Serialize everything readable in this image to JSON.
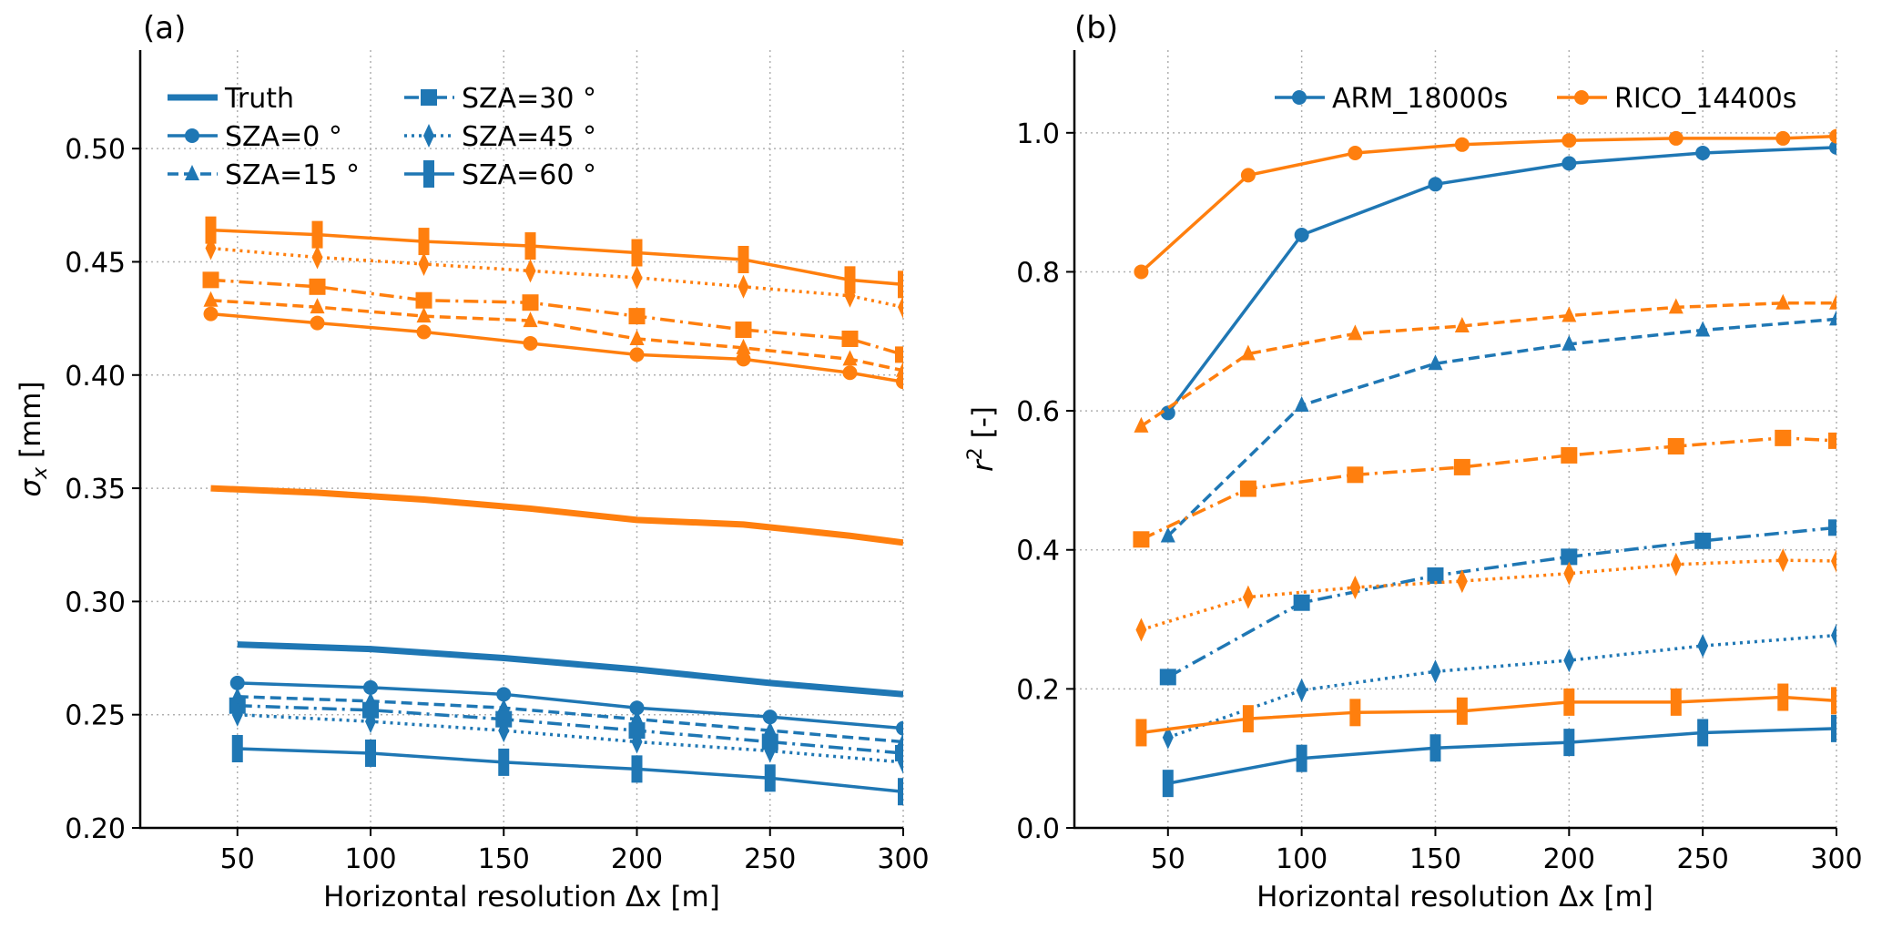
{
  "chart_data": [
    {
      "panel_label": "(a)",
      "type": "line",
      "xlabel": "Horizontal resolution Δx [m]",
      "ylabel": "σx [mm]",
      "ylabel_symbol": "σ",
      "ylabel_subscript": "x",
      "ylabel_unit": " [mm]",
      "xlim": [
        13.5,
        300
      ],
      "ylim": [
        0.2,
        0.5435
      ],
      "xticks": [
        50,
        100,
        150,
        200,
        250,
        300
      ],
      "xtick_labels": [
        "50",
        "100",
        "150",
        "200",
        "250",
        "300"
      ],
      "yticks": [
        0.2,
        0.25,
        0.3,
        0.35,
        0.4,
        0.45,
        0.5
      ],
      "ytick_labels": [
        "0.20",
        "0.25",
        "0.30",
        "0.35",
        "0.40",
        "0.45",
        "0.50"
      ],
      "grid": true,
      "legend_position": "top-left",
      "legend": [
        {
          "label": "Truth",
          "style": "truth",
          "marker": "none"
        },
        {
          "label": "SZA=0 °",
          "style": "solid",
          "marker": "circle"
        },
        {
          "label": "SZA=15 °",
          "style": "dashed",
          "marker": "triangle"
        },
        {
          "label": "SZA=30 °",
          "style": "dashdot",
          "marker": "square"
        },
        {
          "label": "SZA=45 °",
          "style": "dotted",
          "marker": "diamond"
        },
        {
          "label": "SZA=60 °",
          "style": "solid",
          "marker": "bar"
        }
      ],
      "legend_color": "#1f77b4",
      "series": [
        {
          "name": "ARM Truth",
          "color": "#1f77b4",
          "style": "truth",
          "marker": "none",
          "x": [
            50,
            100,
            150,
            200,
            250,
            300
          ],
          "y": [
            0.281,
            0.279,
            0.275,
            0.27,
            0.264,
            0.259
          ]
        },
        {
          "name": "ARM SZA=0",
          "color": "#1f77b4",
          "style": "solid",
          "marker": "circle",
          "x": [
            50,
            100,
            150,
            200,
            250,
            300
          ],
          "y": [
            0.264,
            0.262,
            0.259,
            0.253,
            0.249,
            0.244
          ]
        },
        {
          "name": "ARM SZA=15",
          "color": "#1f77b4",
          "style": "dashed",
          "marker": "triangle",
          "x": [
            50,
            100,
            150,
            200,
            250,
            300
          ],
          "y": [
            0.258,
            0.256,
            0.253,
            0.248,
            0.243,
            0.238
          ]
        },
        {
          "name": "ARM SZA=30",
          "color": "#1f77b4",
          "style": "dashdot",
          "marker": "square",
          "x": [
            50,
            100,
            150,
            200,
            250,
            300
          ],
          "y": [
            0.254,
            0.252,
            0.248,
            0.243,
            0.238,
            0.233
          ]
        },
        {
          "name": "ARM SZA=45",
          "color": "#1f77b4",
          "style": "dotted",
          "marker": "diamond",
          "x": [
            50,
            100,
            150,
            200,
            250,
            300
          ],
          "y": [
            0.25,
            0.247,
            0.243,
            0.238,
            0.234,
            0.229
          ]
        },
        {
          "name": "ARM SZA=60",
          "color": "#1f77b4",
          "style": "solid",
          "marker": "bar",
          "x": [
            50,
            100,
            150,
            200,
            250,
            300
          ],
          "y": [
            0.235,
            0.233,
            0.229,
            0.226,
            0.222,
            0.216
          ]
        },
        {
          "name": "RICO Truth",
          "color": "#ff7f0e",
          "style": "truth",
          "marker": "none",
          "x": [
            40,
            80,
            120,
            160,
            200,
            240,
            280,
            300
          ],
          "y": [
            0.35,
            0.348,
            0.345,
            0.341,
            0.336,
            0.334,
            0.329,
            0.326
          ]
        },
        {
          "name": "RICO SZA=0",
          "color": "#ff7f0e",
          "style": "solid",
          "marker": "circle",
          "x": [
            40,
            80,
            120,
            160,
            200,
            240,
            280,
            300
          ],
          "y": [
            0.427,
            0.423,
            0.419,
            0.414,
            0.409,
            0.407,
            0.401,
            0.397
          ]
        },
        {
          "name": "RICO SZA=15",
          "color": "#ff7f0e",
          "style": "dashed",
          "marker": "triangle",
          "x": [
            40,
            80,
            120,
            160,
            200,
            240,
            280,
            300
          ],
          "y": [
            0.433,
            0.43,
            0.426,
            0.424,
            0.416,
            0.412,
            0.407,
            0.402
          ]
        },
        {
          "name": "RICO SZA=30",
          "color": "#ff7f0e",
          "style": "dashdot",
          "marker": "square",
          "x": [
            40,
            80,
            120,
            160,
            200,
            240,
            280,
            300
          ],
          "y": [
            0.442,
            0.439,
            0.433,
            0.432,
            0.426,
            0.42,
            0.416,
            0.409
          ]
        },
        {
          "name": "RICO SZA=45",
          "color": "#ff7f0e",
          "style": "dotted",
          "marker": "diamond",
          "x": [
            40,
            80,
            120,
            160,
            200,
            240,
            280,
            300
          ],
          "y": [
            0.456,
            0.452,
            0.449,
            0.446,
            0.443,
            0.439,
            0.435,
            0.43
          ]
        },
        {
          "name": "RICO SZA=60",
          "color": "#ff7f0e",
          "style": "solid",
          "marker": "bar",
          "x": [
            40,
            80,
            120,
            160,
            200,
            240,
            280,
            300
          ],
          "y": [
            0.464,
            0.462,
            0.459,
            0.457,
            0.454,
            0.451,
            0.442,
            0.44
          ]
        }
      ]
    },
    {
      "panel_label": "(b)",
      "type": "line",
      "xlabel": "Horizontal resolution Δx [m]",
      "ylabel": "r² [-]",
      "ylabel_symbol": "r",
      "ylabel_superscript": "2",
      "ylabel_unit": " [-]",
      "xlim": [
        15,
        300
      ],
      "ylim": [
        0.0,
        1.119
      ],
      "xticks": [
        50,
        100,
        150,
        200,
        250,
        300
      ],
      "xtick_labels": [
        "50",
        "100",
        "150",
        "200",
        "250",
        "300"
      ],
      "yticks": [
        0.0,
        0.2,
        0.4,
        0.6,
        0.8,
        1.0
      ],
      "ytick_labels": [
        "0.0",
        "0.2",
        "0.4",
        "0.6",
        "0.8",
        "1.0"
      ],
      "grid": true,
      "legend_position": "top-right",
      "legend": [
        {
          "label": "ARM_18000s",
          "color": "#1f77b4",
          "style": "solid",
          "marker": "circle"
        },
        {
          "label": "RICO_14400s",
          "color": "#ff7f0e",
          "style": "solid",
          "marker": "circle"
        }
      ],
      "series": [
        {
          "name": "ARM SZA=0",
          "color": "#1f77b4",
          "style": "solid",
          "marker": "circle",
          "x": [
            50,
            100,
            150,
            200,
            250,
            300
          ],
          "y": [
            0.597,
            0.853,
            0.926,
            0.956,
            0.971,
            0.979
          ]
        },
        {
          "name": "ARM SZA=15",
          "color": "#1f77b4",
          "style": "dashed",
          "marker": "triangle",
          "x": [
            50,
            100,
            150,
            200,
            250,
            300
          ],
          "y": [
            0.42,
            0.608,
            0.668,
            0.696,
            0.716,
            0.732
          ]
        },
        {
          "name": "ARM SZA=30",
          "color": "#1f77b4",
          "style": "dashdot",
          "marker": "square",
          "x": [
            50,
            100,
            150,
            200,
            250,
            300
          ],
          "y": [
            0.217,
            0.324,
            0.363,
            0.39,
            0.413,
            0.432
          ]
        },
        {
          "name": "ARM SZA=45",
          "color": "#1f77b4",
          "style": "dotted",
          "marker": "diamond",
          "x": [
            50,
            100,
            150,
            200,
            250,
            300
          ],
          "y": [
            0.13,
            0.198,
            0.225,
            0.241,
            0.262,
            0.277
          ]
        },
        {
          "name": "ARM SZA=60",
          "color": "#1f77b4",
          "style": "solid",
          "marker": "bar",
          "x": [
            50,
            100,
            150,
            200,
            250,
            300
          ],
          "y": [
            0.064,
            0.1,
            0.115,
            0.123,
            0.137,
            0.143
          ]
        },
        {
          "name": "RICO SZA=0",
          "color": "#ff7f0e",
          "style": "solid",
          "marker": "circle",
          "x": [
            40,
            80,
            120,
            160,
            200,
            240,
            280,
            300
          ],
          "y": [
            0.8,
            0.939,
            0.971,
            0.983,
            0.989,
            0.992,
            0.992,
            0.995
          ]
        },
        {
          "name": "RICO SZA=15",
          "color": "#ff7f0e",
          "style": "dashed",
          "marker": "triangle",
          "x": [
            40,
            80,
            120,
            160,
            200,
            240,
            280,
            300
          ],
          "y": [
            0.578,
            0.682,
            0.711,
            0.722,
            0.737,
            0.749,
            0.755,
            0.755
          ]
        },
        {
          "name": "RICO SZA=30",
          "color": "#ff7f0e",
          "style": "dashdot",
          "marker": "square",
          "x": [
            40,
            80,
            120,
            160,
            200,
            240,
            280,
            300
          ],
          "y": [
            0.415,
            0.488,
            0.508,
            0.519,
            0.536,
            0.549,
            0.561,
            0.557
          ]
        },
        {
          "name": "RICO SZA=45",
          "color": "#ff7f0e",
          "style": "dotted",
          "marker": "diamond",
          "x": [
            40,
            80,
            120,
            160,
            200,
            240,
            280,
            300
          ],
          "y": [
            0.285,
            0.332,
            0.346,
            0.355,
            0.366,
            0.379,
            0.385,
            0.384
          ]
        },
        {
          "name": "RICO SZA=60",
          "color": "#ff7f0e",
          "style": "solid",
          "marker": "bar",
          "x": [
            40,
            80,
            120,
            160,
            200,
            240,
            280,
            300
          ],
          "y": [
            0.137,
            0.157,
            0.166,
            0.168,
            0.181,
            0.181,
            0.188,
            0.183
          ]
        }
      ]
    }
  ]
}
